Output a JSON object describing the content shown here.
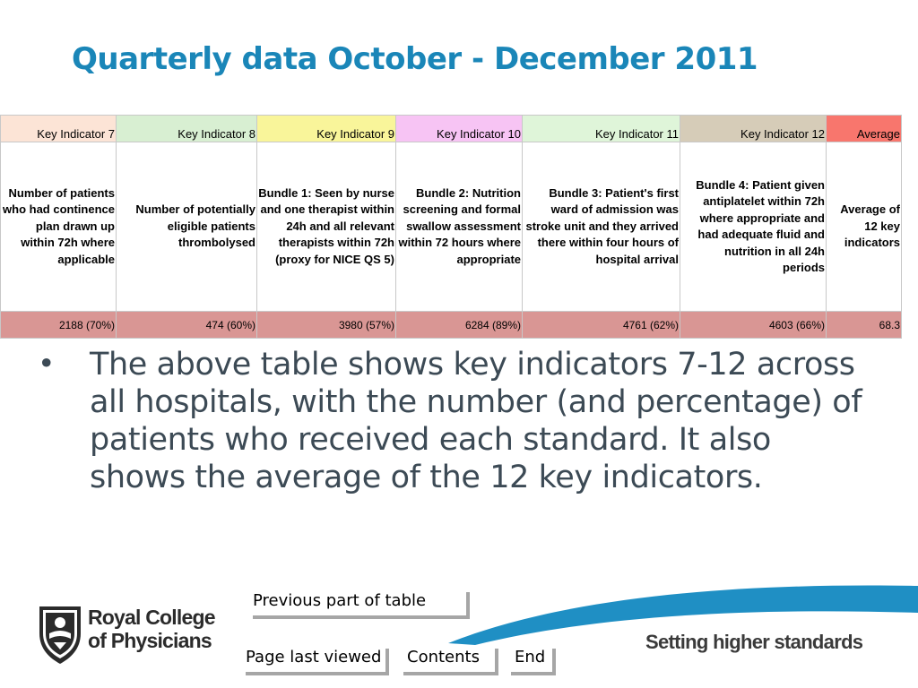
{
  "slide": {
    "title": "Quarterly data October - December 2011"
  },
  "table": {
    "columns": [
      {
        "header": "Key Indicator 7",
        "header_color": "#fce4d6",
        "description": "Number of patients who had continence plan drawn up within 72h where applicable",
        "value": "2188 (70%)"
      },
      {
        "header": "Key Indicator 8",
        "header_color": "#d8efd2",
        "description": "Number of potentially eligible patients thrombolysed",
        "value": "474 (60%)"
      },
      {
        "header": "Key Indicator 9",
        "header_color": "#f9f59a",
        "description": "Bundle 1: Seen by nurse and one therapist within 24h and all relevant therapists within 72h (proxy for NICE QS 5)",
        "value": "3980 (57%)"
      },
      {
        "header": "Key Indicator 10",
        "header_color": "#f7c4f4",
        "description": "Bundle 2: Nutrition screening and formal swallow assessment within 72 hours where appropriate",
        "value": "6284 (89%)"
      },
      {
        "header": "Key Indicator 11",
        "header_color": "#dff5d9",
        "description": "Bundle 3: Patient's first ward of admission was stroke unit and they arrived there within four hours of hospital arrival",
        "value": "4761 (62%)"
      },
      {
        "header": "Key Indicator 12",
        "header_color": "#d6ccb8",
        "description": "Bundle 4: Patient given antiplatelet within 72h where appropriate and had adequate fluid and nutrition in all 24h periods",
        "value": "4603 (66%)"
      },
      {
        "header": "Average",
        "header_color": "#f8766d",
        "description": "Average of 12 key indicators",
        "value": "68.3"
      }
    ],
    "value_row_color": "#d99694"
  },
  "bullet": {
    "text": "The above table shows key indicators 7-12 across all hospitals, with the number (and percentage) of patients who received each standard. It also shows the average of the 12 key indicators."
  },
  "logo": {
    "line1": "Royal College",
    "line2": "of Physicians"
  },
  "nav": {
    "previous_label": "Previous part of table",
    "last_viewed_label": "Page last viewed",
    "contents_label": "Contents",
    "end_label": "End"
  },
  "tagline": "Setting higher standards",
  "colors": {
    "title": "#1a86b8",
    "body_text": "#3c4a55",
    "swoosh": "#1f8fc4"
  }
}
